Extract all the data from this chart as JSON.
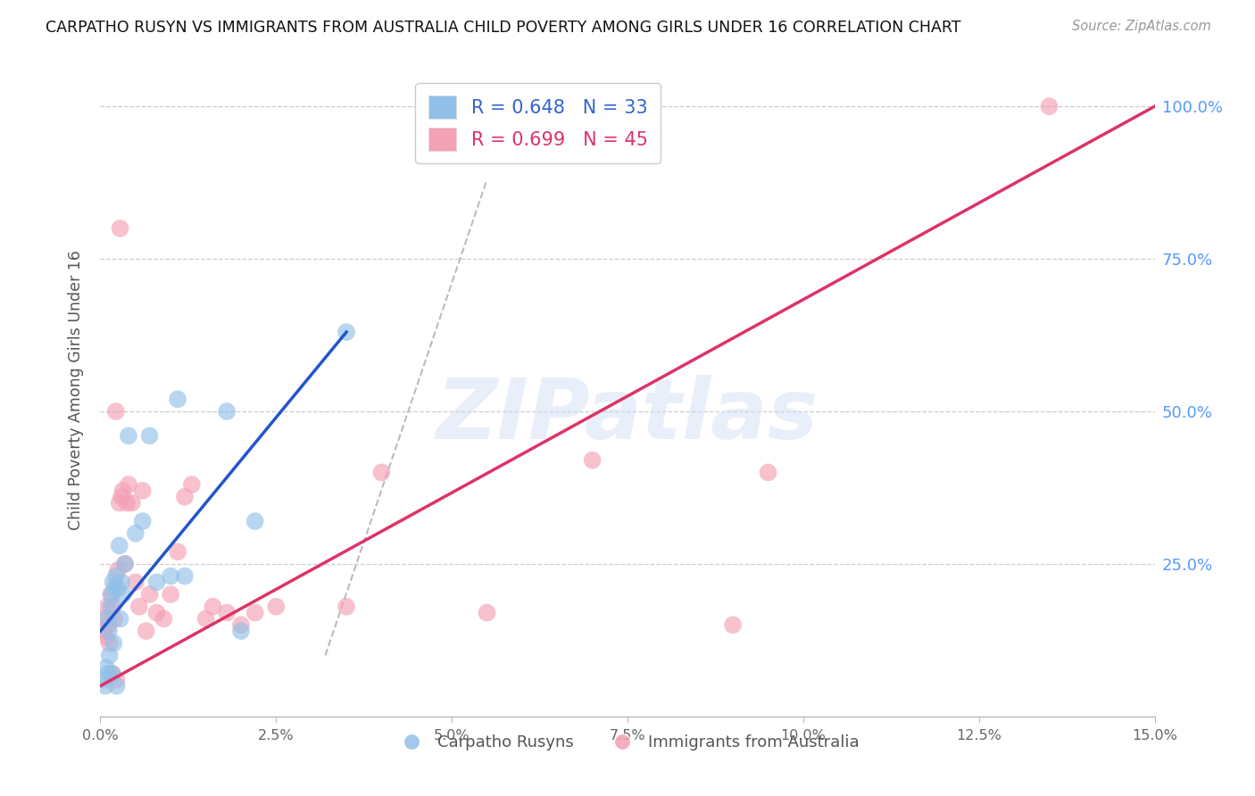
{
  "title": "CARPATHO RUSYN VS IMMIGRANTS FROM AUSTRALIA CHILD POVERTY AMONG GIRLS UNDER 16 CORRELATION CHART",
  "source": "Source: ZipAtlas.com",
  "ylabel": "Child Poverty Among Girls Under 16",
  "blue_R": 0.648,
  "blue_N": 33,
  "pink_R": 0.699,
  "pink_N": 45,
  "blue_color": "#92c0e8",
  "pink_color": "#f4a0b5",
  "blue_line_color": "#2255cc",
  "pink_line_color": "#dd3366",
  "xmin": 0.0,
  "xmax": 15.0,
  "ymin": 0.0,
  "ymax": 107.0,
  "ytick_vals": [
    0,
    25,
    50,
    75,
    100
  ],
  "ytick_right_labels": [
    "",
    "25.0%",
    "50.0%",
    "75.0%",
    "100.0%"
  ],
  "xtick_vals": [
    0,
    2.5,
    5.0,
    7.5,
    10.0,
    12.5,
    15.0
  ],
  "xtick_labels": [
    "0.0%",
    "2.5%",
    "5.0%",
    "7.5%",
    "10.0%",
    "12.5%",
    "15.0%"
  ],
  "watermark_text": "ZIPatlas",
  "blue_scatter_x": [
    0.05,
    0.07,
    0.08,
    0.1,
    0.11,
    0.12,
    0.13,
    0.15,
    0.16,
    0.17,
    0.18,
    0.19,
    0.2,
    0.22,
    0.23,
    0.25,
    0.27,
    0.28,
    0.3,
    0.32,
    0.35,
    0.4,
    0.5,
    0.6,
    0.7,
    0.8,
    1.0,
    1.1,
    1.2,
    1.8,
    2.0,
    2.2,
    3.5
  ],
  "blue_scatter_y": [
    6.0,
    5.0,
    8.0,
    16.0,
    7.0,
    14.0,
    10.0,
    18.0,
    20.0,
    7.0,
    22.0,
    12.0,
    21.0,
    23.0,
    5.0,
    21.0,
    28.0,
    16.0,
    22.0,
    20.0,
    25.0,
    46.0,
    30.0,
    32.0,
    46.0,
    22.0,
    23.0,
    52.0,
    23.0,
    50.0,
    14.0,
    32.0,
    63.0
  ],
  "pink_scatter_x": [
    0.05,
    0.07,
    0.08,
    0.1,
    0.12,
    0.13,
    0.15,
    0.17,
    0.18,
    0.2,
    0.22,
    0.23,
    0.25,
    0.27,
    0.28,
    0.3,
    0.32,
    0.35,
    0.38,
    0.4,
    0.45,
    0.5,
    0.55,
    0.6,
    0.65,
    0.7,
    0.8,
    0.9,
    1.0,
    1.1,
    1.2,
    1.3,
    1.5,
    1.6,
    1.8,
    2.0,
    2.2,
    2.5,
    3.5,
    4.0,
    5.5,
    7.0,
    9.0,
    9.5,
    13.5
  ],
  "pink_scatter_y": [
    14.0,
    16.0,
    13.0,
    18.0,
    15.0,
    12.0,
    20.0,
    7.0,
    18.0,
    16.0,
    50.0,
    6.0,
    24.0,
    35.0,
    80.0,
    36.0,
    37.0,
    25.0,
    35.0,
    38.0,
    35.0,
    22.0,
    18.0,
    37.0,
    14.0,
    20.0,
    17.0,
    16.0,
    20.0,
    27.0,
    36.0,
    38.0,
    16.0,
    18.0,
    17.0,
    15.0,
    17.0,
    18.0,
    18.0,
    40.0,
    17.0,
    42.0,
    15.0,
    40.0,
    100.0
  ],
  "blue_trendline_x0": 0.0,
  "blue_trendline_x1": 3.5,
  "blue_trendline_y0": 14.0,
  "blue_trendline_y1": 63.0,
  "pink_trendline_x0": 0.0,
  "pink_trendline_x1": 15.0,
  "pink_trendline_y0": 5.0,
  "pink_trendline_y1": 100.0,
  "dash_x0": 3.2,
  "dash_y0": 10.0,
  "dash_x1": 5.5,
  "dash_y1": 88.0
}
